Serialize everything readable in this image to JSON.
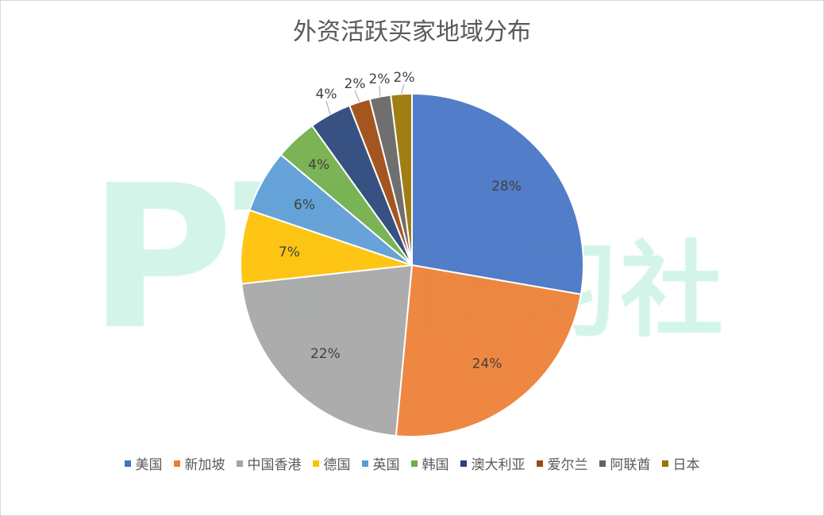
{
  "chart_data": {
    "type": "pie",
    "title": "外资活跃买家地域分布",
    "categories": [
      "美国",
      "新加坡",
      "中国香港",
      "德国",
      "英国",
      "韩国",
      "澳大利亚",
      "爱尔兰",
      "阿联酋",
      "日本"
    ],
    "values": [
      28,
      24,
      22,
      7,
      6,
      4,
      4,
      2,
      2,
      2
    ],
    "data_labels": [
      "28%",
      "24%",
      "22%",
      "7%",
      "6%",
      "4%",
      "4%",
      "2%",
      "2%",
      "2%"
    ],
    "colors": [
      "#4472C4",
      "#ED7D31",
      "#A5A5A5",
      "#FFC000",
      "#5B9BD5",
      "#70AD47",
      "#264478",
      "#9E480E",
      "#636363",
      "#997300"
    ],
    "legend": "bottom",
    "start_angle": "top, clockwise"
  },
  "watermark": "PT研习社"
}
